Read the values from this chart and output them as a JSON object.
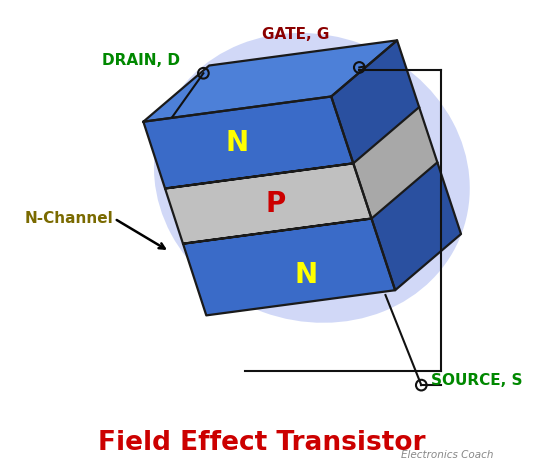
{
  "title": "Field Effect Transistor",
  "title_color": "#cc0000",
  "title_fontsize": 19,
  "watermark": "Electronics Coach",
  "bg_color": "#ffffff",
  "glow_color": "#99aaee",
  "body_blue_front": "#3a6bc8",
  "body_blue_right": "#2a50a0",
  "body_blue_top": "#4d80d8",
  "p_region_front": "#c0c0c0",
  "p_region_right": "#a8a8a8",
  "p_region_top": "#d0d0d0",
  "label_N_color": "#ffff00",
  "label_P_color": "#cc0000",
  "label_N_fontsize": 20,
  "label_P_fontsize": 20,
  "drain_label": "DRAIN, D",
  "drain_color": "#008800",
  "gate_label": "GATE, G",
  "gate_color": "#8b0000",
  "source_label": "SOURCE, S",
  "source_color": "#008800",
  "nchannel_label": "N-Channel",
  "nchannel_color": "#7a6a00",
  "line_color": "#111111",
  "edge_color": "#1a1a1a"
}
